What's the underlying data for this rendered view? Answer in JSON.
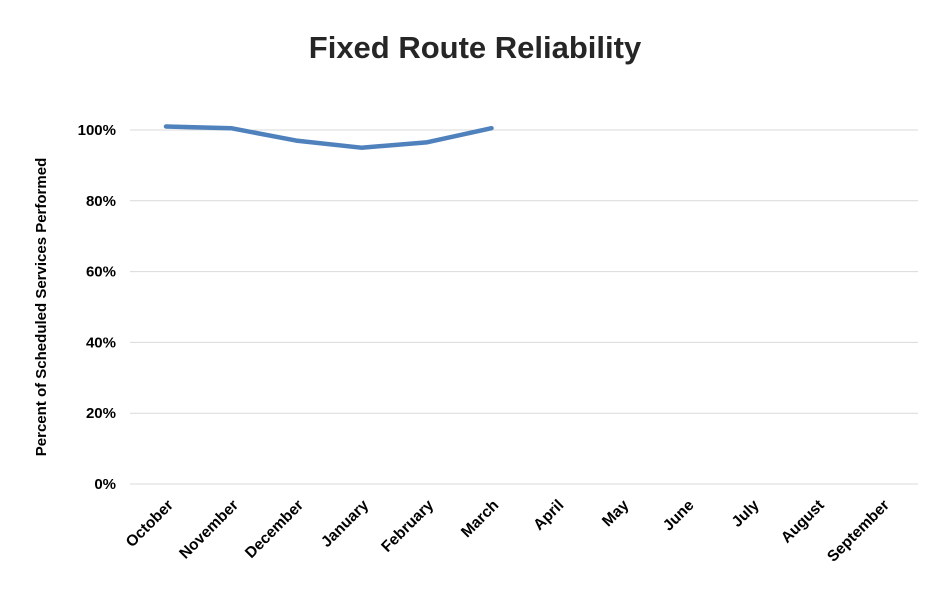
{
  "chart_data": {
    "type": "line",
    "title": "Fixed Route Reliability",
    "ylabel": "Percent of Scheduled Services Performed",
    "xlabel": "",
    "categories": [
      "October",
      "November",
      "December",
      "January",
      "February",
      "March",
      "April",
      "May",
      "June",
      "July",
      "August",
      "September"
    ],
    "values": [
      101,
      100.5,
      97,
      95,
      96.5,
      100.5,
      null,
      null,
      null,
      null,
      null,
      null
    ],
    "ylim": [
      0,
      110
    ],
    "yticks": [
      0,
      20,
      40,
      60,
      80,
      100
    ],
    "ytick_suffix": "%",
    "grid": true,
    "legend": false,
    "line_color": "#4F81BD",
    "grid_color": "#D9D9D9",
    "text_color": "#000000",
    "background": "#FFFFFF"
  }
}
